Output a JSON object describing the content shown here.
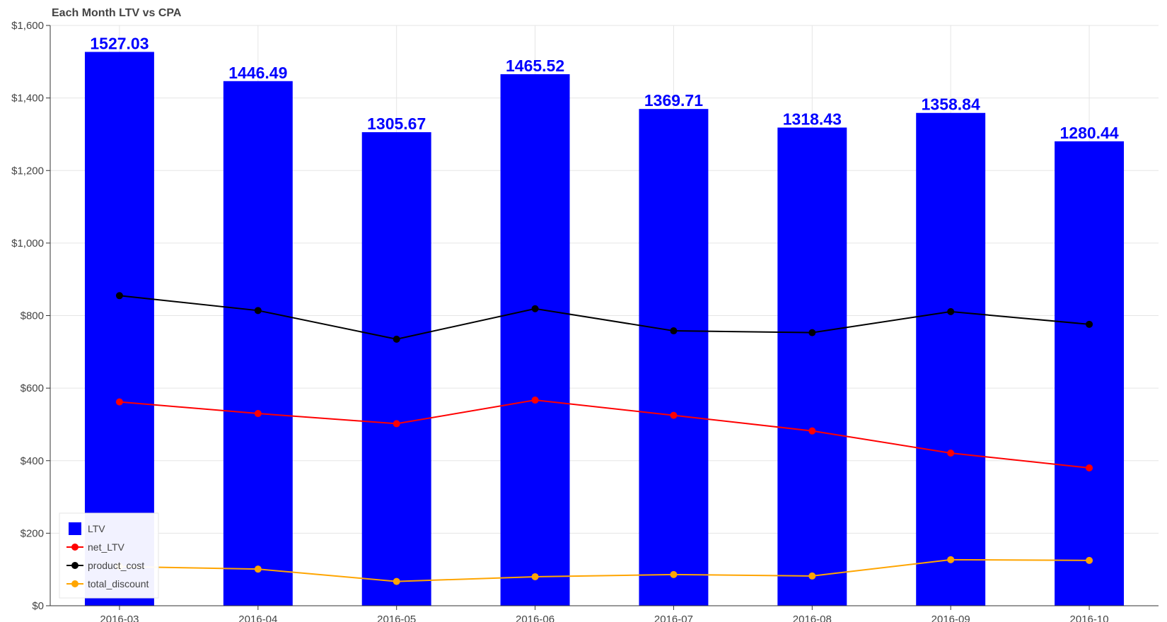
{
  "chart_data": {
    "type": "bar",
    "title": "Each Month LTV vs CPA",
    "xlabel": "",
    "ylabel": "",
    "categories": [
      "2016-03",
      "2016-04",
      "2016-05",
      "2016-06",
      "2016-07",
      "2016-08",
      "2016-09",
      "2016-10"
    ],
    "ylim": [
      0,
      1600
    ],
    "yticks": [
      0,
      200,
      400,
      600,
      800,
      1000,
      1200,
      1400,
      1600
    ],
    "ytick_labels": [
      "$0",
      "$200",
      "$400",
      "$600",
      "$800",
      "$1,000",
      "$1,200",
      "$1,400",
      "$1,600"
    ],
    "grid": true,
    "legend_position": "bottom-left",
    "series": [
      {
        "name": "LTV",
        "type": "bar",
        "color": "#0000ff",
        "values": [
          1527.03,
          1446.49,
          1305.67,
          1465.52,
          1369.71,
          1318.43,
          1358.84,
          1280.44
        ],
        "labels": [
          "1527.03",
          "1446.49",
          "1305.67",
          "1465.52",
          "1369.71",
          "1318.43",
          "1358.84",
          "1280.44"
        ]
      },
      {
        "name": "net_LTV",
        "type": "line",
        "color": "#ff0000",
        "values": [
          562,
          530,
          502,
          567,
          525,
          482,
          421,
          380
        ]
      },
      {
        "name": "product_cost",
        "type": "line",
        "color": "#000000",
        "values": [
          855,
          814,
          735,
          819,
          758,
          753,
          811,
          776
        ]
      },
      {
        "name": "total_discount",
        "type": "line",
        "color": "#ffa500",
        "values": [
          108,
          101,
          67,
          80,
          86,
          82,
          127,
          125
        ]
      }
    ]
  }
}
